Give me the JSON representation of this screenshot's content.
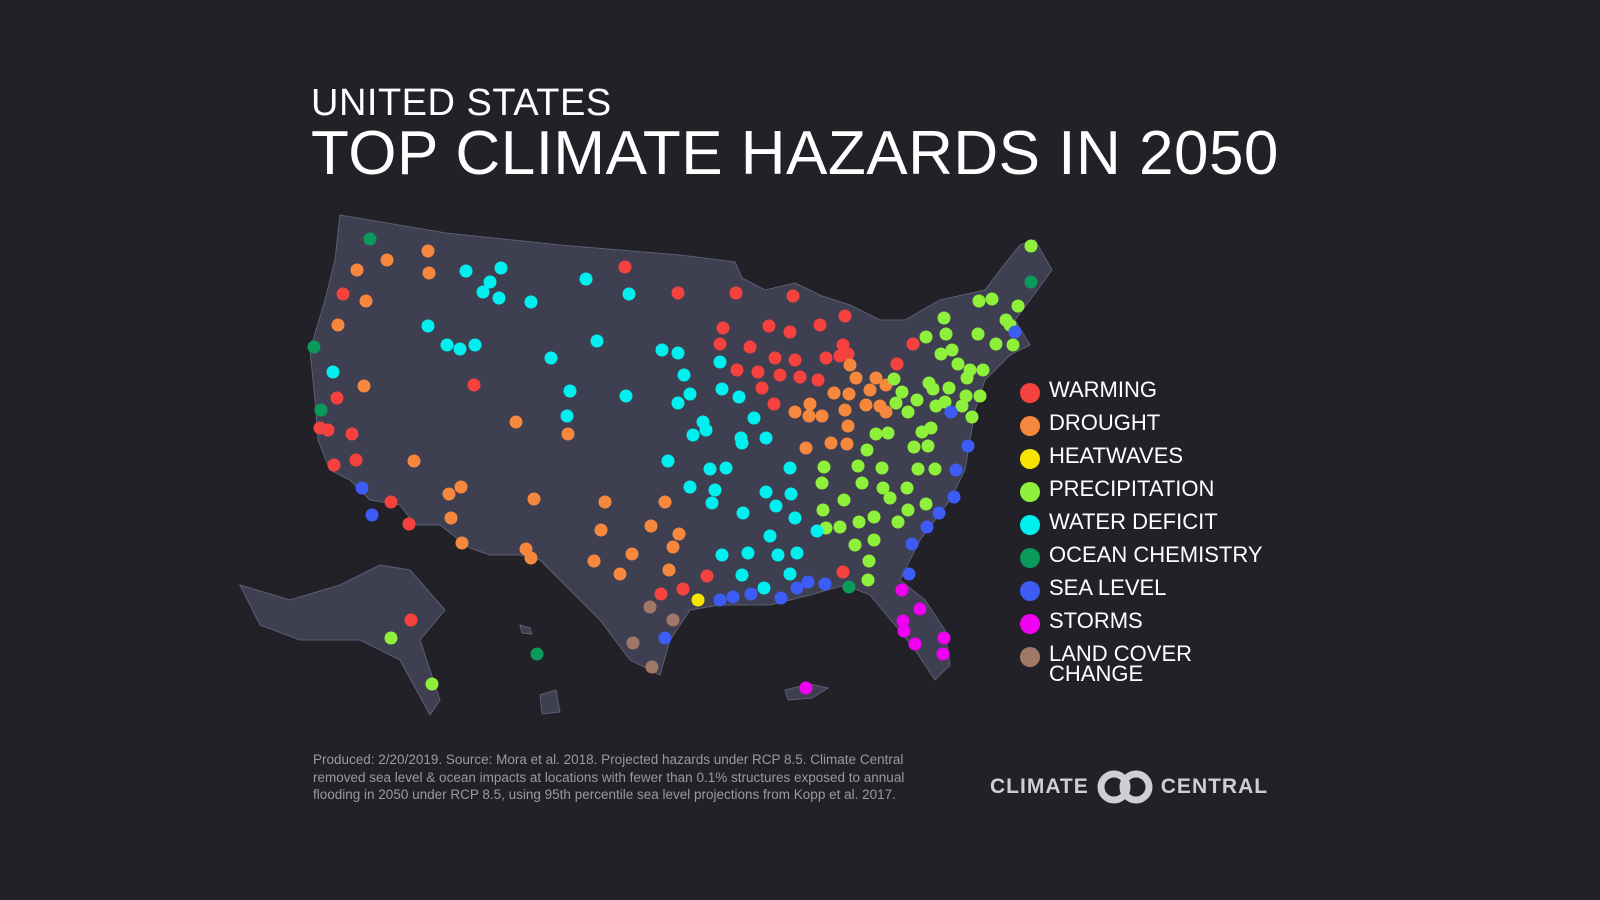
{
  "header": {
    "subtitle": "UNITED STATES",
    "title": "TOP CLIMATE HAZARDS IN 2050"
  },
  "legend": [
    {
      "key": "warming",
      "label": "WARMING",
      "color": "#f5423f"
    },
    {
      "key": "drought",
      "label": "DROUGHT",
      "color": "#f5883c"
    },
    {
      "key": "heatwaves",
      "label": "HEATWAVES",
      "color": "#f7e400"
    },
    {
      "key": "precipitation",
      "label": "PRECIPITATION",
      "color": "#8ff03c"
    },
    {
      "key": "water_deficit",
      "label": "WATER DEFICIT",
      "color": "#00f0f0"
    },
    {
      "key": "ocean_chemistry",
      "label": "OCEAN CHEMISTRY",
      "color": "#0a9a5c"
    },
    {
      "key": "sea_level",
      "label": "SEA LEVEL",
      "color": "#3d5cf5"
    },
    {
      "key": "storms",
      "label": "STORMS",
      "color": "#f000f0"
    },
    {
      "key": "land_cover_change",
      "label": "LAND COVER CHANGE",
      "color": "#a07868"
    }
  ],
  "map": {
    "land_color": "#3f3f52",
    "border_color": "#5d5d74"
  },
  "footer": {
    "note": "Produced: 2/20/2019. Source: Mora et al. 2018. Projected hazards under RCP 8.5. Climate Central removed sea level & ocean impacts at locations with fewer than 0.1% structures exposed to annual flooding in 2050 under RCP 8.5, using 95th percentile sea level projections from  Kopp et al. 2017."
  },
  "logo": {
    "left": "CLIMATE",
    "right": "CENTRAL"
  }
}
